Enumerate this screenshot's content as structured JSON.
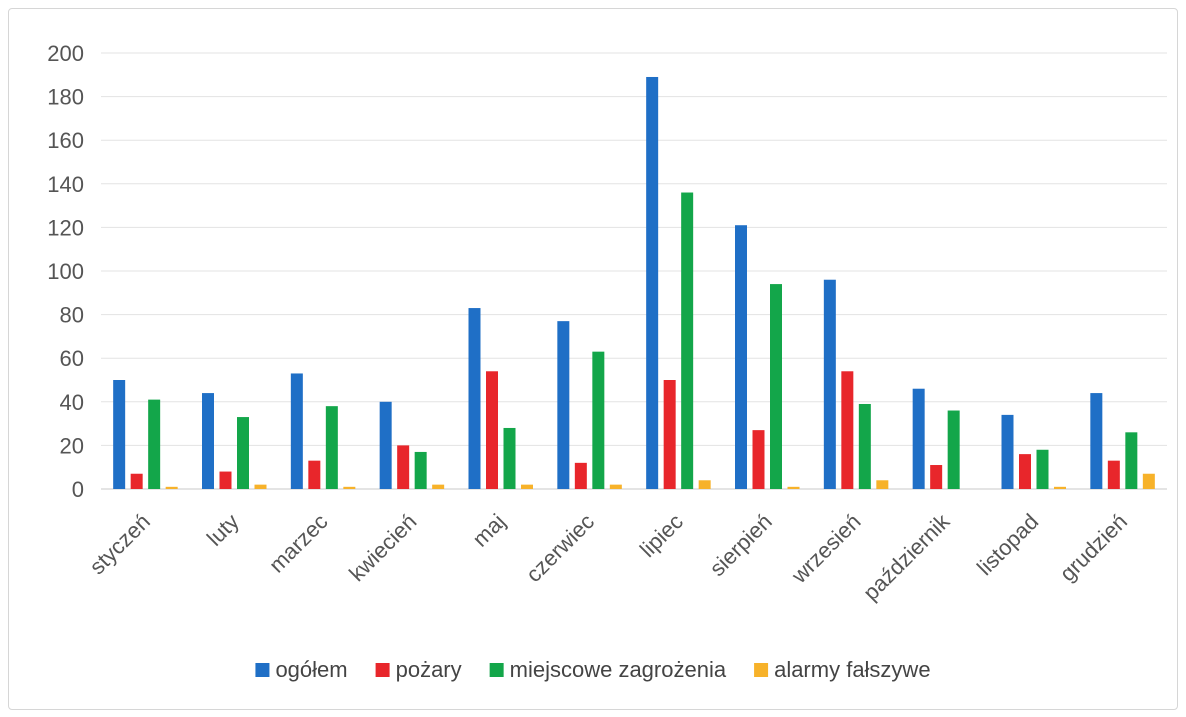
{
  "chart_data": {
    "type": "bar",
    "title": "",
    "xlabel": "",
    "ylabel": "",
    "ylim": [
      0,
      200
    ],
    "yticks": [
      0,
      20,
      40,
      60,
      80,
      100,
      120,
      140,
      160,
      180,
      200
    ],
    "grid": true,
    "legend_position": "bottom",
    "categories": [
      "styczeń",
      "luty",
      "marzec",
      "kwiecień",
      "maj",
      "czerwiec",
      "lipiec",
      "sierpień",
      "wrzesień",
      "październik",
      "listopad",
      "grudzień"
    ],
    "series": [
      {
        "name": "ogółem",
        "color": "#1f6fc6",
        "values": [
          50,
          44,
          53,
          40,
          83,
          77,
          189,
          121,
          96,
          46,
          34,
          44
        ]
      },
      {
        "name": "pożary",
        "color": "#e8262b",
        "values": [
          7,
          8,
          13,
          20,
          54,
          12,
          50,
          27,
          54,
          11,
          16,
          13
        ]
      },
      {
        "name": "miejscowe zagrożenia",
        "color": "#13a64a",
        "values": [
          41,
          33,
          38,
          17,
          28,
          63,
          136,
          94,
          39,
          36,
          18,
          26
        ]
      },
      {
        "name": "alarmy fałszywe",
        "color": "#f7b22a",
        "values": [
          1,
          2,
          1,
          2,
          2,
          2,
          4,
          1,
          4,
          0,
          1,
          7
        ]
      }
    ]
  }
}
